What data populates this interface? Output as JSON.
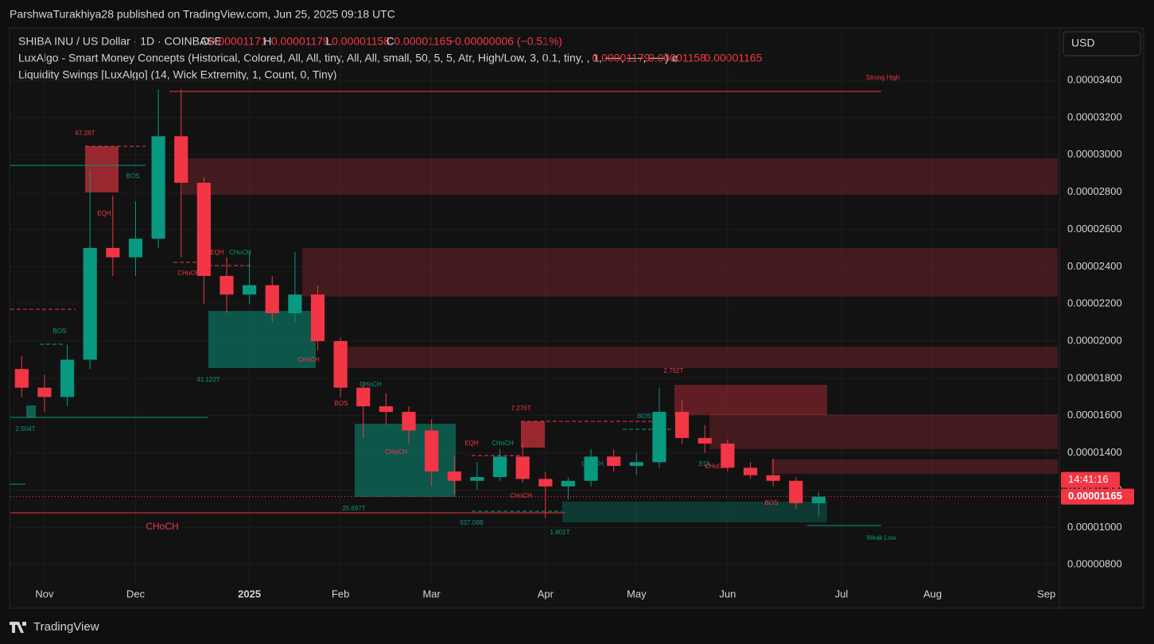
{
  "header": {
    "publisher": "ParshwaTurakhiya28 published on TradingView.com, Jun 25, 2025 09:18 UTC"
  },
  "legend": {
    "symbol": "SHIBA INU / US Dollar · 1D · COINBASE",
    "ohlc": [
      {
        "label": "O",
        "value": "0.00001171"
      },
      {
        "label": "H",
        "value": "0.00001179"
      },
      {
        "label": "L",
        "value": "0.00001158"
      },
      {
        "label": "C",
        "value": "0.00001165"
      }
    ],
    "change": "−0.00000006 (−0.51%)",
    "indicator1": "LuxAlgo - Smart Money Concepts (Historical, Colored, All, All, tiny, All, All, small, 50, 5, 5, Atr, High/Low, 3, 0.1, tiny, , 1, ──, ──, ──)  ø",
    "indicator1_values": [
      "0.00001179",
      "0.00001158",
      "0.00001165"
    ],
    "indicator2": "Liquidity Swings [LuxAlgo] (14, Wick Extremity, 1, Count, 0, Tiny)"
  },
  "currency_button": "USD",
  "footer": {
    "brand": "TradingView"
  },
  "chart_data": {
    "type": "candlestick",
    "categories": [
      null,
      "Nov",
      null,
      null,
      null,
      "Dec",
      null,
      null,
      null,
      null,
      "2025",
      null,
      null,
      null,
      "Feb",
      null,
      null,
      null,
      "Mar",
      null,
      null,
      null,
      null,
      "Apr",
      null,
      null,
      null,
      "May",
      null,
      null,
      null,
      "Jun",
      null,
      null,
      null,
      null,
      "Jul",
      null,
      null,
      null,
      "Aug",
      null,
      null,
      null,
      null,
      "Sep"
    ],
    "open": [
      1.85e-05,
      1.75e-05,
      1.7e-05,
      1.9e-05,
      2.5e-05,
      2.45e-05,
      2.55e-05,
      3.1e-05,
      2.85e-05,
      2.35e-05,
      2.25e-05,
      2.3e-05,
      2.15e-05,
      2.25e-05,
      2e-05,
      1.75e-05,
      1.65e-05,
      1.62e-05,
      1.52e-05,
      1.3e-05,
      1.25e-05,
      1.27e-05,
      1.38e-05,
      1.26e-05,
      1.22e-05,
      1.25e-05,
      1.38e-05,
      1.33e-05,
      1.35e-05,
      1.62e-05,
      1.48e-05,
      1.45e-05,
      1.32e-05,
      1.28e-05,
      1.25e-05,
      1.13e-05,
      null,
      null,
      null,
      null,
      null,
      null,
      null,
      null,
      null,
      null
    ],
    "high": [
      1.92e-05,
      1.82e-05,
      1.98e-05,
      2.92e-05,
      2.78e-05,
      2.75e-05,
      3.35e-05,
      3.35e-05,
      2.88e-05,
      2.45e-05,
      2.48e-05,
      2.35e-05,
      2.48e-05,
      2.3e-05,
      2.02e-05,
      1.78e-05,
      1.72e-05,
      1.65e-05,
      1.58e-05,
      1.38e-05,
      1.35e-05,
      1.42e-05,
      1.45e-05,
      1.3e-05,
      1.27e-05,
      1.42e-05,
      1.42e-05,
      1.4e-05,
      1.75e-05,
      1.68e-05,
      1.55e-05,
      1.47e-05,
      1.35e-05,
      1.37e-05,
      1.27e-05,
      1.19e-05,
      null,
      null,
      null,
      null,
      null,
      null,
      null,
      null,
      null,
      null
    ],
    "low": [
      1.7e-05,
      1.62e-05,
      1.65e-05,
      1.85e-05,
      2.35e-05,
      2.35e-05,
      2.5e-05,
      2.45e-05,
      2.2e-05,
      2.15e-05,
      2.2e-05,
      2.1e-05,
      2.1e-05,
      1.95e-05,
      1.7e-05,
      1.48e-05,
      1.55e-05,
      1.45e-05,
      1.22e-05,
      1.18e-05,
      1.2e-05,
      1.25e-05,
      1.24e-05,
      1.05e-05,
      1.15e-05,
      1.22e-05,
      1.3e-05,
      1.28e-05,
      1.32e-05,
      1.45e-05,
      1.4e-05,
      1.3e-05,
      1.26e-05,
      1.22e-05,
      1.1e-05,
      1.06e-05,
      null,
      null,
      null,
      null,
      null,
      null,
      null,
      null,
      null,
      null
    ],
    "close": [
      1.75e-05,
      1.7e-05,
      1.9e-05,
      2.5e-05,
      2.45e-05,
      2.55e-05,
      3.1e-05,
      2.85e-05,
      2.35e-05,
      2.25e-05,
      2.3e-05,
      2.15e-05,
      2.25e-05,
      2e-05,
      1.75e-05,
      1.65e-05,
      1.62e-05,
      1.52e-05,
      1.3e-05,
      1.25e-05,
      1.27e-05,
      1.38e-05,
      1.26e-05,
      1.22e-05,
      1.25e-05,
      1.38e-05,
      1.33e-05,
      1.35e-05,
      1.62e-05,
      1.48e-05,
      1.45e-05,
      1.32e-05,
      1.28e-05,
      1.25e-05,
      1.13e-05,
      1.165e-05,
      null,
      null,
      null,
      null,
      null,
      null,
      null,
      null,
      null,
      null
    ],
    "up_color": "#089981",
    "down_color": "#f23645",
    "ylim": [
      5.66e-06,
      3.669e-05
    ],
    "yticks": [
      {
        "value": 8e-06,
        "label": "0.00000800"
      },
      {
        "value": 1e-05,
        "label": "0.00001000"
      },
      {
        "value": 1.2e-05,
        "label": "0.00001200"
      },
      {
        "value": 1.4e-05,
        "label": "0.00001400"
      },
      {
        "value": 1.6e-05,
        "label": "0.00001600"
      },
      {
        "value": 1.8e-05,
        "label": "0.00001800"
      },
      {
        "value": 2e-05,
        "label": "0.00002000"
      },
      {
        "value": 2.2e-05,
        "label": "0.00002200"
      },
      {
        "value": 2.4e-05,
        "label": "0.00002400"
      },
      {
        "value": 2.6e-05,
        "label": "0.00002600"
      },
      {
        "value": 2.8e-05,
        "label": "0.00002800"
      },
      {
        "value": 3e-05,
        "label": "0.00003000"
      },
      {
        "value": 3.2e-05,
        "label": "0.00003200"
      },
      {
        "value": 3.4e-05,
        "label": "0.00003400"
      }
    ],
    "grid": true,
    "last_price": {
      "value": 1.165e-05,
      "label": "0.00001165",
      "countdown": "14:41:16"
    },
    "annotations": [
      "Strong High",
      "67.28T",
      "EQH",
      "BOS",
      "2.504T",
      "BOS",
      "EQH",
      "CHoCH",
      "CHoCH",
      "41.122T",
      "CHoCH",
      "BOS",
      "CHoCH",
      "CHoCH",
      "7.276T",
      "EQH",
      "CHoCH",
      "CHoCH",
      "25.697T",
      "937.09B",
      "1.801T",
      "CHoCH",
      "BOS",
      "2.792T",
      "EQL",
      "CHoCH",
      "BOS",
      "Weak Low",
      "CHoCH"
    ]
  }
}
